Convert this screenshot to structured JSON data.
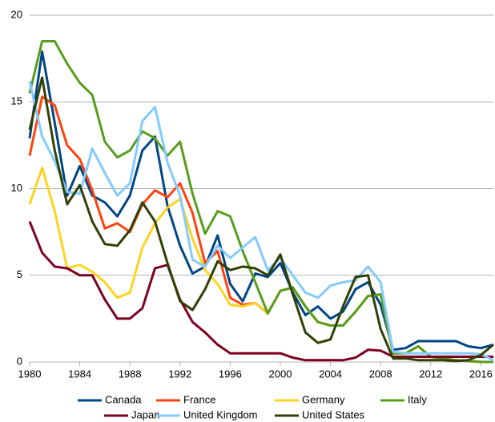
{
  "chart_data": {
    "type": "line",
    "x": [
      1980,
      1981,
      1982,
      1983,
      1984,
      1985,
      1986,
      1987,
      1988,
      1989,
      1990,
      1991,
      1992,
      1993,
      1994,
      1995,
      1996,
      1997,
      1998,
      1999,
      2000,
      2001,
      2002,
      2003,
      2004,
      2005,
      2006,
      2007,
      2008,
      2009,
      2010,
      2011,
      2012,
      2013,
      2014,
      2015,
      2016,
      2017
    ],
    "xlim": [
      1980,
      2017
    ],
    "xticks": [
      1980,
      1984,
      1988,
      1992,
      1996,
      2000,
      2004,
      2008,
      2012,
      2016
    ],
    "ylim": [
      0,
      20
    ],
    "yticks": [
      0,
      5,
      10,
      15,
      20
    ],
    "grid": true,
    "legend": "bottom",
    "series": [
      {
        "name": "Canada",
        "color": "#004586",
        "values": [
          12.9,
          17.9,
          13.8,
          9.6,
          11.3,
          9.6,
          9.2,
          8.4,
          9.6,
          12.2,
          13.0,
          9.0,
          6.7,
          5.1,
          5.5,
          7.3,
          4.5,
          3.5,
          5.1,
          4.9,
          5.7,
          4.0,
          2.7,
          3.2,
          2.5,
          2.9,
          4.2,
          4.6,
          3.3,
          0.7,
          0.8,
          1.2,
          1.2,
          1.2,
          1.2,
          0.9,
          0.8,
          1.0
        ]
      },
      {
        "name": "France",
        "color": "#ff420e",
        "values": [
          11.9,
          15.3,
          14.8,
          12.5,
          11.7,
          9.9,
          7.7,
          8.0,
          7.5,
          9.1,
          9.9,
          9.5,
          10.3,
          8.6,
          5.7,
          6.4,
          3.7,
          3.3,
          3.4,
          2.8,
          4.1,
          4.3,
          3.2,
          2.3,
          2.1,
          2.1,
          2.9,
          3.8,
          3.9,
          0.5,
          0.5,
          0.9,
          0.3,
          0.2,
          0.1,
          0.05,
          0.0,
          0.0
        ]
      },
      {
        "name": "Germany",
        "color": "#ffd320",
        "values": [
          9.1,
          11.2,
          8.7,
          5.4,
          5.6,
          5.2,
          4.6,
          3.7,
          4.0,
          6.6,
          8.0,
          8.9,
          9.4,
          7.1,
          5.3,
          4.5,
          3.3,
          3.2,
          3.4,
          2.8,
          4.1,
          4.3,
          3.2,
          2.3,
          2.1,
          2.1,
          2.9,
          3.8,
          3.9,
          0.5,
          0.5,
          0.9,
          0.3,
          0.2,
          0.1,
          0.05,
          0.0,
          0.0
        ]
      },
      {
        "name": "Italy",
        "color": "#579d1c",
        "values": [
          15.5,
          18.5,
          18.5,
          17.2,
          16.1,
          15.4,
          12.7,
          11.8,
          12.2,
          13.3,
          12.9,
          11.9,
          12.7,
          9.7,
          7.4,
          8.7,
          8.4,
          6.4,
          4.6,
          2.8,
          4.1,
          4.3,
          3.2,
          2.3,
          2.1,
          2.1,
          2.9,
          3.8,
          3.9,
          0.5,
          0.5,
          0.9,
          0.3,
          0.2,
          0.1,
          0.05,
          0.0,
          0.0
        ]
      },
      {
        "name": "Japan",
        "color": "#7e0021",
        "values": [
          8.1,
          6.3,
          5.5,
          5.4,
          5.0,
          5.0,
          3.6,
          2.5,
          2.5,
          3.1,
          5.4,
          5.6,
          3.6,
          2.3,
          1.7,
          1.0,
          0.5,
          0.5,
          0.5,
          0.5,
          0.5,
          0.25,
          0.1,
          0.1,
          0.1,
          0.1,
          0.25,
          0.7,
          0.65,
          0.3,
          0.3,
          0.3,
          0.3,
          0.3,
          0.3,
          0.3,
          0.3,
          0.3
        ]
      },
      {
        "name": "United Kingdom",
        "color": "#83caff",
        "values": [
          16.2,
          13.0,
          11.6,
          9.8,
          9.7,
          12.3,
          10.9,
          9.6,
          10.3,
          13.9,
          14.7,
          11.5,
          9.6,
          5.9,
          5.5,
          6.7,
          6.0,
          6.6,
          7.2,
          5.3,
          6.0,
          5.0,
          4.0,
          3.7,
          4.4,
          4.6,
          4.7,
          5.5,
          4.6,
          0.6,
          0.5,
          0.5,
          0.5,
          0.5,
          0.5,
          0.5,
          0.45,
          0.1
        ]
      },
      {
        "name": "United States",
        "color": "#314004",
        "values": [
          13.4,
          16.4,
          12.2,
          9.1,
          10.2,
          8.1,
          6.8,
          6.7,
          7.6,
          9.2,
          8.1,
          5.7,
          3.5,
          3.0,
          4.2,
          5.8,
          5.3,
          5.5,
          5.4,
          5.0,
          6.2,
          3.9,
          1.7,
          1.1,
          1.3,
          3.2,
          4.9,
          5.0,
          1.9,
          0.2,
          0.2,
          0.1,
          0.1,
          0.1,
          0.05,
          0.1,
          0.4,
          1.0
        ]
      }
    ]
  }
}
